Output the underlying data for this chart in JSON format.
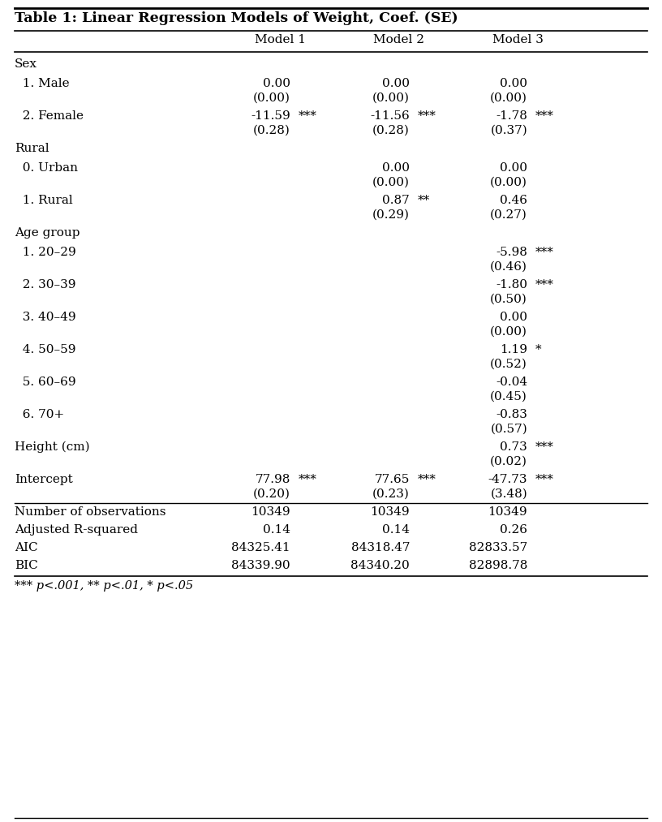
{
  "title": "Table 1: Linear Regression Models of Weight, Coef. (SE)",
  "footnote": "*** p<.001, ** p<.01, * p<.05",
  "rows": [
    {
      "label": "Sex",
      "type": "section",
      "indent": 0,
      "m1_coef": "",
      "m1_se": "",
      "m1_sig": "",
      "m2_coef": "",
      "m2_se": "",
      "m2_sig": "",
      "m3_coef": "",
      "m3_se": "",
      "m3_sig": ""
    },
    {
      "label": "  1. Male",
      "type": "data",
      "indent": 1,
      "m1_coef": "0.00",
      "m1_se": "(0.00)",
      "m1_sig": "",
      "m2_coef": "0.00",
      "m2_se": "(0.00)",
      "m2_sig": "",
      "m3_coef": "0.00",
      "m3_se": "(0.00)",
      "m3_sig": ""
    },
    {
      "label": "  2. Female",
      "type": "data",
      "indent": 1,
      "m1_coef": "-11.59",
      "m1_se": "(0.28)",
      "m1_sig": "***",
      "m2_coef": "-11.56",
      "m2_se": "(0.28)",
      "m2_sig": "***",
      "m3_coef": "-1.78",
      "m3_se": "(0.37)",
      "m3_sig": "***"
    },
    {
      "label": "Rural",
      "type": "section",
      "indent": 0,
      "m1_coef": "",
      "m1_se": "",
      "m1_sig": "",
      "m2_coef": "",
      "m2_se": "",
      "m2_sig": "",
      "m3_coef": "",
      "m3_se": "",
      "m3_sig": ""
    },
    {
      "label": "  0. Urban",
      "type": "data",
      "indent": 1,
      "m1_coef": "",
      "m1_se": "",
      "m1_sig": "",
      "m2_coef": "0.00",
      "m2_se": "(0.00)",
      "m2_sig": "",
      "m3_coef": "0.00",
      "m3_se": "(0.00)",
      "m3_sig": ""
    },
    {
      "label": "  1. Rural",
      "type": "data",
      "indent": 1,
      "m1_coef": "",
      "m1_se": "",
      "m1_sig": "",
      "m2_coef": "0.87",
      "m2_se": "(0.29)",
      "m2_sig": "**",
      "m3_coef": "0.46",
      "m3_se": "(0.27)",
      "m3_sig": ""
    },
    {
      "label": "Age group",
      "type": "section",
      "indent": 0,
      "m1_coef": "",
      "m1_se": "",
      "m1_sig": "",
      "m2_coef": "",
      "m2_se": "",
      "m2_sig": "",
      "m3_coef": "",
      "m3_se": "",
      "m3_sig": ""
    },
    {
      "label": "  1. 20–29",
      "type": "data",
      "indent": 1,
      "m1_coef": "",
      "m1_se": "",
      "m1_sig": "",
      "m2_coef": "",
      "m2_se": "",
      "m2_sig": "",
      "m3_coef": "-5.98",
      "m3_se": "(0.46)",
      "m3_sig": "***"
    },
    {
      "label": "  2. 30–39",
      "type": "data",
      "indent": 1,
      "m1_coef": "",
      "m1_se": "",
      "m1_sig": "",
      "m2_coef": "",
      "m2_se": "",
      "m2_sig": "",
      "m3_coef": "-1.80",
      "m3_se": "(0.50)",
      "m3_sig": "***"
    },
    {
      "label": "  3. 40–49",
      "type": "data",
      "indent": 1,
      "m1_coef": "",
      "m1_se": "",
      "m1_sig": "",
      "m2_coef": "",
      "m2_se": "",
      "m2_sig": "",
      "m3_coef": "0.00",
      "m3_se": "(0.00)",
      "m3_sig": ""
    },
    {
      "label": "  4. 50–59",
      "type": "data",
      "indent": 1,
      "m1_coef": "",
      "m1_se": "",
      "m1_sig": "",
      "m2_coef": "",
      "m2_se": "",
      "m2_sig": "",
      "m3_coef": "1.19",
      "m3_se": "(0.52)",
      "m3_sig": "*"
    },
    {
      "label": "  5. 60–69",
      "type": "data",
      "indent": 1,
      "m1_coef": "",
      "m1_se": "",
      "m1_sig": "",
      "m2_coef": "",
      "m2_se": "",
      "m2_sig": "",
      "m3_coef": "-0.04",
      "m3_se": "(0.45)",
      "m3_sig": ""
    },
    {
      "label": "  6. 70+",
      "type": "data",
      "indent": 1,
      "m1_coef": "",
      "m1_se": "",
      "m1_sig": "",
      "m2_coef": "",
      "m2_se": "",
      "m2_sig": "",
      "m3_coef": "-0.83",
      "m3_se": "(0.57)",
      "m3_sig": ""
    },
    {
      "label": "Height (cm)",
      "type": "data",
      "indent": 0,
      "m1_coef": "",
      "m1_se": "",
      "m1_sig": "",
      "m2_coef": "",
      "m2_se": "",
      "m2_sig": "",
      "m3_coef": "0.73",
      "m3_se": "(0.02)",
      "m3_sig": "***"
    },
    {
      "label": "Intercept",
      "type": "data",
      "indent": 0,
      "m1_coef": "77.98",
      "m1_se": "(0.20)",
      "m1_sig": "***",
      "m2_coef": "77.65",
      "m2_se": "(0.23)",
      "m2_sig": "***",
      "m3_coef": "-47.73",
      "m3_se": "(3.48)",
      "m3_sig": "***"
    },
    {
      "label": "Number of observations",
      "type": "stat",
      "m1_val": "10349",
      "m2_val": "10349",
      "m3_val": "10349"
    },
    {
      "label": "Adjusted R-squared",
      "type": "stat",
      "m1_val": "0.14",
      "m2_val": "0.14",
      "m3_val": "0.26"
    },
    {
      "label": "AIC",
      "type": "stat",
      "m1_val": "84325.41",
      "m2_val": "84318.47",
      "m3_val": "82833.57"
    },
    {
      "label": "BIC",
      "type": "stat",
      "m1_val": "84339.90",
      "m2_val": "84340.20",
      "m3_val": "82898.78"
    }
  ],
  "bg_color": "#ffffff",
  "text_color": "#000000",
  "title_fontsize": 12.5,
  "body_fontsize": 11.0,
  "font_family": "DejaVu Serif"
}
